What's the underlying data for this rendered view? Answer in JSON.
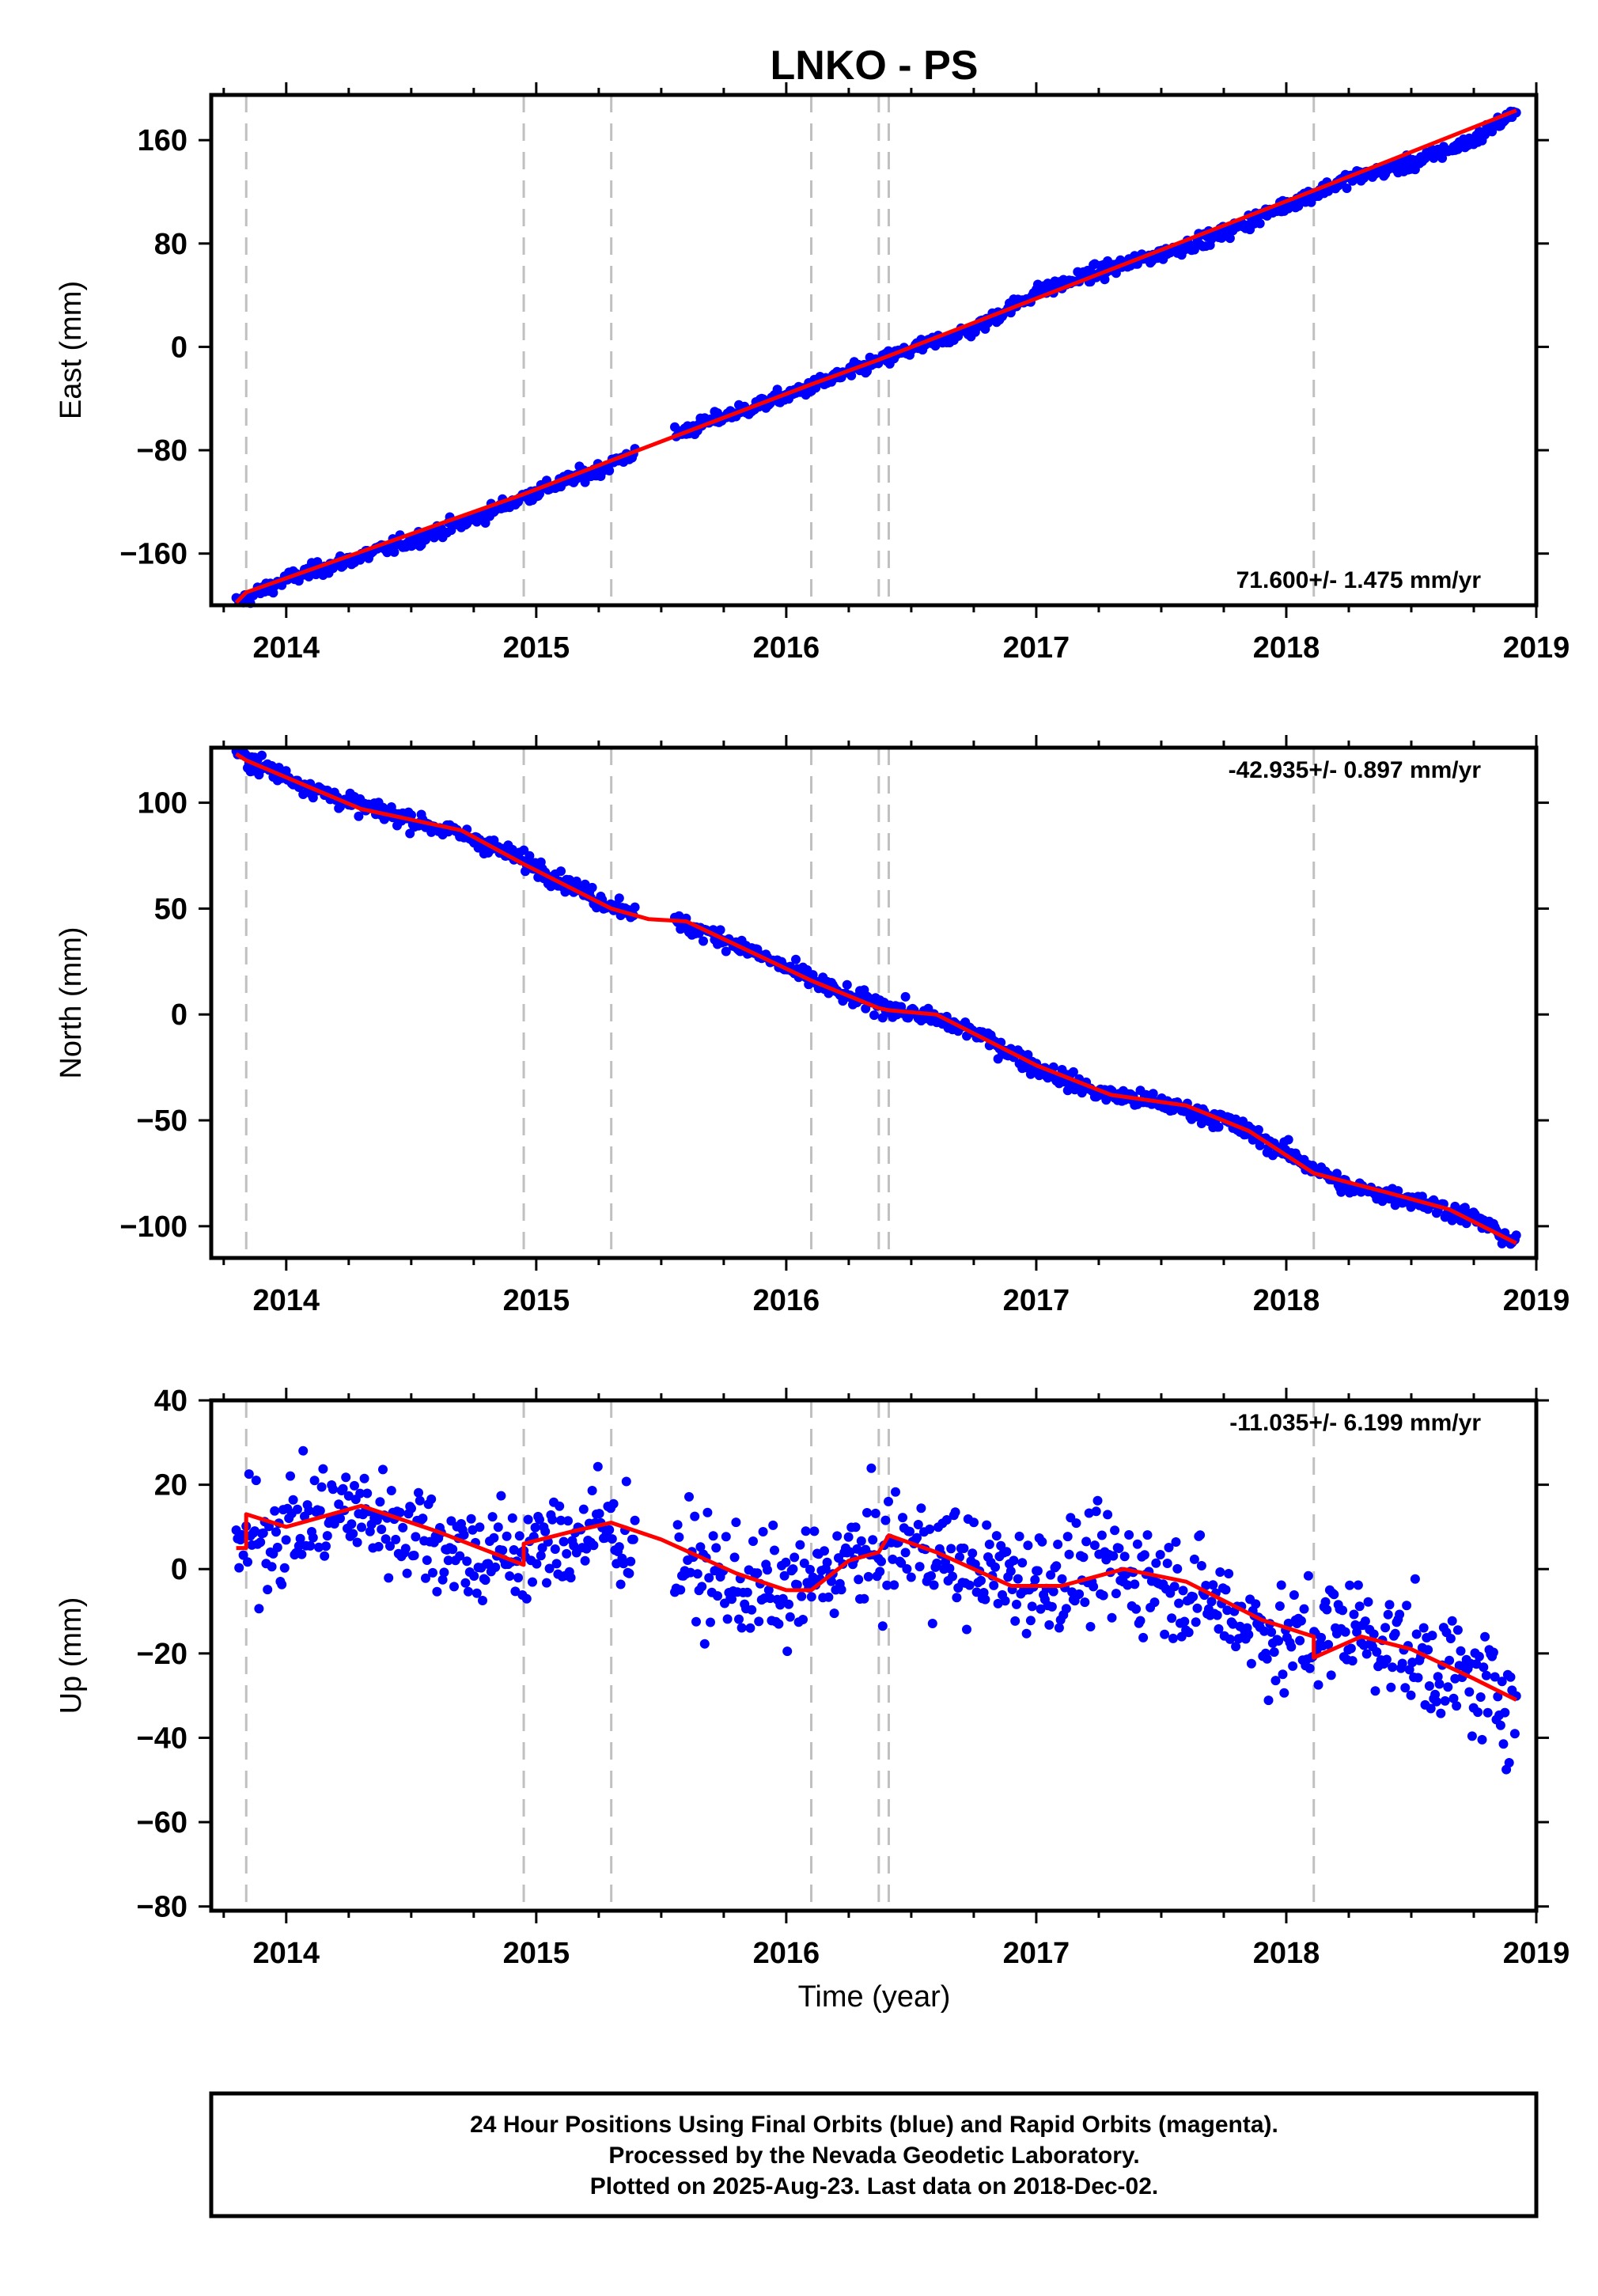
{
  "title": "LNKO - PS",
  "xlabel": "Time (year)",
  "colors": {
    "final_orbits": "#0000ff",
    "rapid_orbits": "#ff00ff",
    "model": "#ff0000",
    "event_lines": "#c0c0c0"
  },
  "footer": {
    "line1": "24 Hour Positions Using Final Orbits (blue) and Rapid Orbits (magenta).",
    "line2": "Processed by the Nevada Geodetic Laboratory.",
    "line3": "Plotted on 2025-Aug-23. Last data on 2018-Dec-02."
  },
  "chart_data": [
    {
      "type": "scatter",
      "component": "east",
      "ylabel": "East (mm)",
      "xlim": [
        2013.7,
        2019.0
      ],
      "ylim": [
        -200,
        195
      ],
      "x_ticks": [
        2014,
        2015,
        2016,
        2017,
        2018,
        2019
      ],
      "y_ticks": [
        -160,
        -80,
        0,
        80,
        160
      ],
      "rate_label": "71.600+/- 1.475 mm/yr",
      "rate_position": "bottom-right",
      "event_lines": [
        2013.84,
        2014.95,
        2015.3,
        2016.1,
        2016.37,
        2016.41,
        2018.11
      ],
      "model_knots": [
        [
          2013.8,
          -198
        ],
        [
          2013.84,
          -190
        ],
        [
          2014.95,
          -114
        ],
        [
          2015.3,
          -88
        ],
        [
          2016.1,
          -29
        ],
        [
          2016.37,
          -10
        ],
        [
          2016.41,
          -7
        ],
        [
          2018.11,
          121
        ],
        [
          2018.92,
          183
        ]
      ],
      "series": [
        {
          "name": "Final Orbits",
          "x": [
            2013.8,
            2014.0,
            2014.25,
            2014.5,
            2014.75,
            2015.0,
            2015.25,
            2015.5,
            2015.75,
            2016.0,
            2016.25,
            2016.5,
            2016.75,
            2017.0,
            2017.25,
            2017.5,
            2017.75,
            2018.0,
            2018.25,
            2018.5,
            2018.75,
            2018.92
          ],
          "y": [
            -198,
            -180,
            -165,
            -150,
            -133,
            -112,
            -95,
            -72,
            -54,
            -38,
            -20,
            -2,
            14,
            42,
            58,
            72,
            88,
            110,
            130,
            142,
            160,
            183
          ],
          "noise": 4
        }
      ]
    },
    {
      "type": "scatter",
      "component": "north",
      "ylabel": "North (mm)",
      "xlim": [
        2013.7,
        2019.0
      ],
      "ylim": [
        -115,
        126
      ],
      "x_ticks": [
        2014,
        2015,
        2016,
        2017,
        2018,
        2019
      ],
      "y_ticks": [
        -100,
        -50,
        0,
        50,
        100
      ],
      "rate_label": "-42.935+/- 0.897 mm/yr",
      "rate_position": "top-right",
      "event_lines": [
        2013.84,
        2014.95,
        2015.3,
        2016.1,
        2016.37,
        2016.41,
        2018.11
      ],
      "model_knots": [
        [
          2013.8,
          123
        ],
        [
          2013.84,
          120
        ],
        [
          2014.3,
          97
        ],
        [
          2014.7,
          87
        ],
        [
          2014.95,
          71
        ],
        [
          2015.3,
          50
        ],
        [
          2015.45,
          45
        ],
        [
          2015.6,
          44
        ],
        [
          2016.1,
          16
        ],
        [
          2016.37,
          3
        ],
        [
          2016.41,
          2
        ],
        [
          2016.6,
          0
        ],
        [
          2017.0,
          -24
        ],
        [
          2017.3,
          -38
        ],
        [
          2017.6,
          -43
        ],
        [
          2017.85,
          -55
        ],
        [
          2018.11,
          -75
        ],
        [
          2018.4,
          -84
        ],
        [
          2018.65,
          -92
        ],
        [
          2018.92,
          -108
        ]
      ],
      "series": [
        {
          "name": "Final Orbits",
          "x": [
            2013.8,
            2014.0,
            2014.25,
            2014.5,
            2014.75,
            2015.0,
            2015.25,
            2015.5,
            2015.75,
            2016.0,
            2016.25,
            2016.5,
            2016.75,
            2017.0,
            2017.25,
            2017.5,
            2017.75,
            2018.0,
            2018.25,
            2018.5,
            2018.75,
            2018.92
          ],
          "y": [
            123,
            112,
            100,
            92,
            83,
            70,
            54,
            45,
            36,
            22,
            8,
            1,
            -8,
            -25,
            -37,
            -42,
            -50,
            -65,
            -82,
            -87,
            -96,
            -108
          ],
          "noise": 3
        }
      ]
    },
    {
      "type": "scatter",
      "component": "up",
      "ylabel": "Up (mm)",
      "xlim": [
        2013.7,
        2019.0
      ],
      "ylim": [
        -81,
        40
      ],
      "x_ticks": [
        2014,
        2015,
        2016,
        2017,
        2018,
        2019
      ],
      "y_ticks": [
        -80,
        -60,
        -40,
        -20,
        0,
        20,
        40
      ],
      "rate_label": "-11.035+/- 6.199 mm/yr",
      "rate_position": "top-right",
      "event_lines": [
        2013.84,
        2014.95,
        2015.3,
        2016.1,
        2016.37,
        2016.41,
        2018.11
      ],
      "model_knots": [
        [
          2013.8,
          5
        ],
        [
          2013.84,
          5
        ],
        [
          2013.84,
          13
        ],
        [
          2014.0,
          10
        ],
        [
          2014.3,
          15
        ],
        [
          2014.6,
          9
        ],
        [
          2014.95,
          1
        ],
        [
          2014.95,
          6
        ],
        [
          2015.15,
          9
        ],
        [
          2015.3,
          11
        ],
        [
          2015.5,
          7
        ],
        [
          2015.8,
          -1
        ],
        [
          2016.0,
          -5
        ],
        [
          2016.1,
          -5
        ],
        [
          2016.25,
          2
        ],
        [
          2016.37,
          4
        ],
        [
          2016.41,
          8
        ],
        [
          2016.6,
          4
        ],
        [
          2016.9,
          -4
        ],
        [
          2017.1,
          -4
        ],
        [
          2017.35,
          0
        ],
        [
          2017.6,
          -3
        ],
        [
          2017.9,
          -12
        ],
        [
          2018.11,
          -16
        ],
        [
          2018.11,
          -21
        ],
        [
          2018.3,
          -16
        ],
        [
          2018.5,
          -19
        ],
        [
          2018.75,
          -26
        ],
        [
          2018.92,
          -31
        ]
      ],
      "series": [
        {
          "name": "Final Orbits",
          "x": [
            2013.8,
            2014.0,
            2014.25,
            2014.5,
            2014.75,
            2015.0,
            2015.25,
            2015.5,
            2015.75,
            2016.0,
            2016.25,
            2016.5,
            2016.75,
            2017.0,
            2017.25,
            2017.5,
            2017.75,
            2018.0,
            2018.25,
            2018.5,
            2018.75,
            2018.92
          ],
          "y": [
            5,
            10,
            14,
            10,
            3,
            4,
            10,
            4,
            -3,
            -6,
            2,
            6,
            0,
            -3,
            0,
            -2,
            -9,
            -18,
            -13,
            -20,
            -27,
            -31
          ],
          "noise": 9
        }
      ]
    }
  ]
}
